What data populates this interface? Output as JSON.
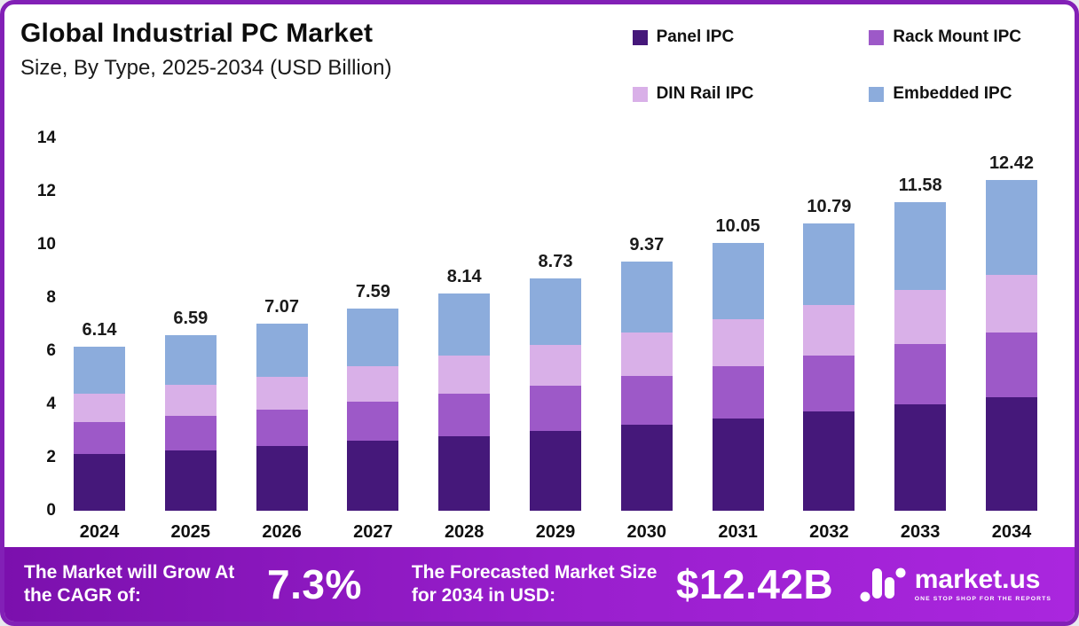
{
  "header": {
    "title": "Global Industrial PC Market",
    "subtitle": "Size, By Type, 2025-2034 (USD Billion)"
  },
  "chart_data": {
    "type": "bar",
    "stacked": true,
    "title": "Global Industrial PC Market Size, By Type, 2025-2034 (USD Billion)",
    "xlabel": "",
    "ylabel": "",
    "ylim": [
      0,
      14
    ],
    "yticks": [
      0,
      2,
      4,
      6,
      8,
      10,
      12,
      14
    ],
    "grid": false,
    "legend_position": "top-right",
    "categories": [
      "2024",
      "2025",
      "2026",
      "2027",
      "2028",
      "2029",
      "2030",
      "2031",
      "2032",
      "2033",
      "2034"
    ],
    "totals": [
      "6.14",
      "6.59",
      "7.07",
      "7.59",
      "8.14",
      "8.73",
      "9.37",
      "10.05",
      "10.79",
      "11.58",
      "12.42"
    ],
    "series": [
      {
        "name": "Panel IPC",
        "color": "#45187a",
        "values": [
          2.12,
          2.27,
          2.44,
          2.62,
          2.81,
          3.01,
          3.23,
          3.47,
          3.72,
          4.0,
          4.28
        ]
      },
      {
        "name": "Rack Mount IPC",
        "color": "#9d59c8",
        "values": [
          1.2,
          1.29,
          1.38,
          1.48,
          1.59,
          1.7,
          1.83,
          1.96,
          2.1,
          2.26,
          2.42
        ]
      },
      {
        "name": "DIN Rail IPC",
        "color": "#d9b0e8",
        "values": [
          1.07,
          1.15,
          1.24,
          1.33,
          1.42,
          1.53,
          1.64,
          1.76,
          1.89,
          2.03,
          2.17
        ]
      },
      {
        "name": "Embedded IPC",
        "color": "#8cacdc",
        "values": [
          1.75,
          1.88,
          2.01,
          2.16,
          2.32,
          2.49,
          2.67,
          2.86,
          3.08,
          3.29,
          3.55
        ]
      }
    ]
  },
  "footer": {
    "cagr_label": "The Market will Grow At the CAGR of:",
    "cagr_value": "7.3%",
    "forecast_label": "The Forecasted Market Size for 2034 in USD:",
    "forecast_value": "$12.42B",
    "brand": "market.us",
    "brand_tagline": "ONE STOP SHOP FOR THE REPORTS"
  },
  "colors": {
    "frame": "#8220b6",
    "footer_gradient_start": "#7b10ad",
    "footer_gradient_end": "#aa26de"
  }
}
